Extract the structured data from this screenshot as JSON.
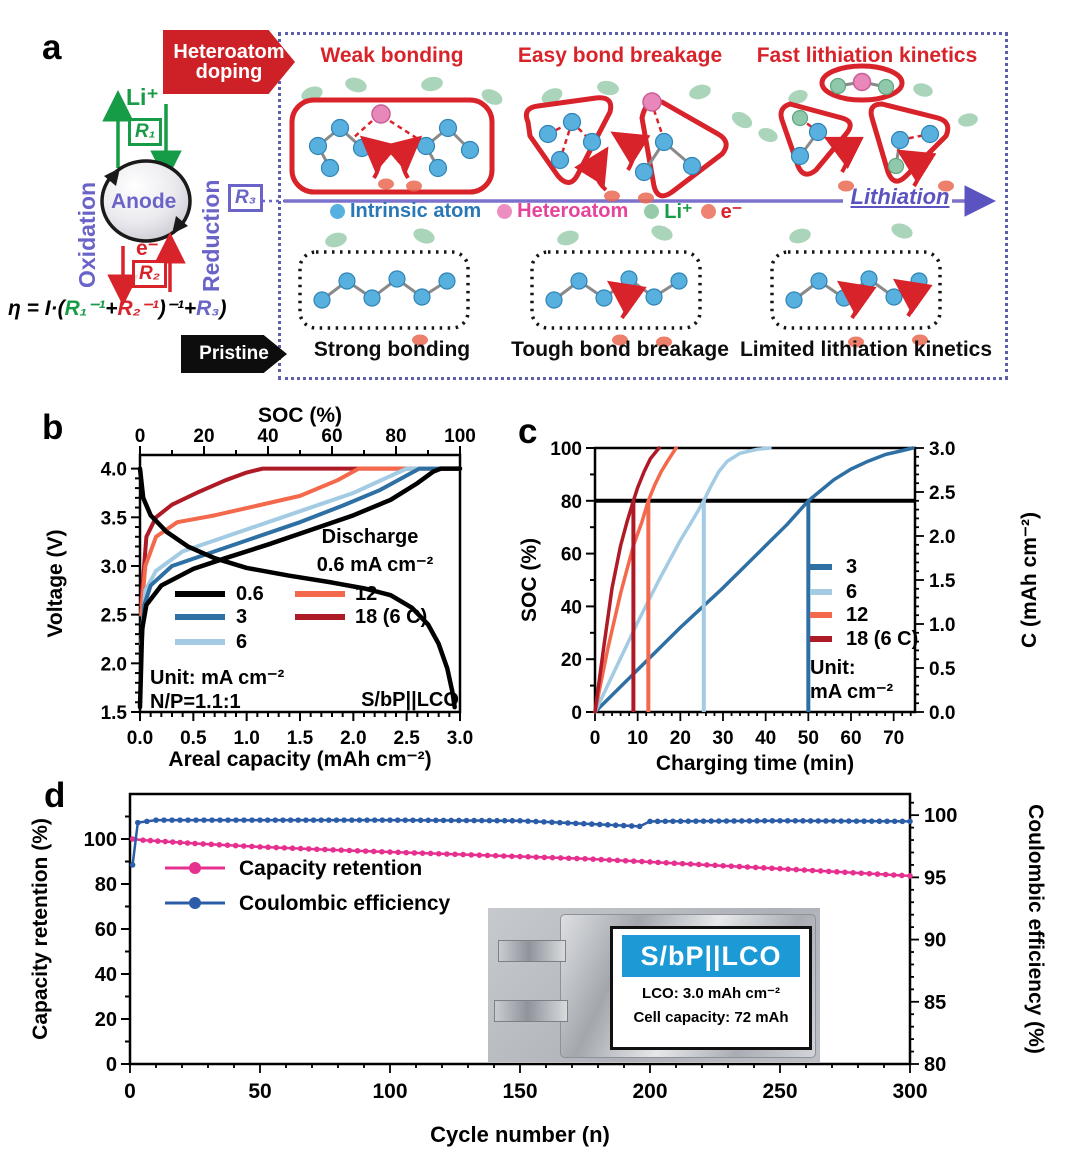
{
  "colors": {
    "accent_red": "#d8232a",
    "purple": "#6b64c8",
    "green": "#169c46",
    "atom_blue": "#58b0df",
    "heteroatom_pink": "#e887b9",
    "li_green": "#96cbaa",
    "electron_red": "#e96a50",
    "inset_banner_blue": "#1c9ad6",
    "retention_pink": "#e6308f",
    "ce_blue": "#2b5ca8"
  },
  "icons": {
    "heteroatom-doping-banner": "right-arrow ribbon",
    "pristine-banner": "right-arrow ribbon",
    "anode-cycle-icon": "circular arrow ring",
    "lithiation-arrow-icon": "rightwards arrow",
    "molecule-cluster-icon": "atoms and bonds"
  },
  "panel_a": {
    "label": "a",
    "banner_doped": {
      "line1": "Heteroatom",
      "line2": "doping"
    },
    "banner_pristine": "Pristine",
    "top_labels": [
      "Weak bonding",
      "Easy bond breakage",
      "Fast lithiation kinetics"
    ],
    "bottom_labels": [
      "Strong bonding",
      "Tough bond breakage",
      "Limited lithiation kinetics"
    ],
    "legend": [
      {
        "label": "Intrinsic atom",
        "color": "#2878b8",
        "dot": "#57b0e0"
      },
      {
        "label": "Heteroatom",
        "color": "#e8439a",
        "dot": "#ec8fc0"
      },
      {
        "label": "Li⁺",
        "color": "#169c46",
        "dot": "#96cbaa"
      },
      {
        "label": "e⁻",
        "color": "#d8232a",
        "dot": "#ef8372"
      }
    ],
    "lithiation": "Lithiation",
    "cycle": {
      "li": "Li⁺",
      "r1": "R₁",
      "oxidation": "Oxidation",
      "anode": "Anode",
      "reduction": "Reduction",
      "e": "e⁻",
      "r2": "R₂",
      "r3": "R₃"
    },
    "equation": {
      "p1": "η = I·(",
      "p2": "R₁⁻¹",
      "p3": "+",
      "p4": "R₂⁻¹",
      "p5": ")⁻¹+",
      "p6": "R₃",
      "p7": ")"
    }
  },
  "panel_labels": {
    "b": "b",
    "c": "c",
    "d": "d"
  },
  "chart_data": [
    {
      "id": "b",
      "type": "line",
      "xlabel": "Areal capacity (mAh cm⁻²)",
      "ylabel": "Voltage (V)",
      "x2label": "SOC (%)",
      "xlim": [
        0,
        3.0
      ],
      "ylim": [
        1.5,
        4.0
      ],
      "x2lim": [
        0,
        100
      ],
      "xticks": [
        "0.0",
        "0.5",
        "1.0",
        "1.5",
        "2.0",
        "2.5",
        "3.0"
      ],
      "yticks": [
        "1.5",
        "2.0",
        "2.5",
        "3.0",
        "3.5",
        "4.0"
      ],
      "x2ticks": [
        "0",
        "20",
        "40",
        "60",
        "80",
        "100"
      ],
      "grid": false,
      "annotations": [
        "Discharge",
        "0.6 mA cm⁻²",
        "Unit: mA cm⁻²",
        "N/P=1.1:1",
        "S/bP||LCO"
      ],
      "legend": [
        {
          "label": "0.6",
          "color": "#000000"
        },
        {
          "label": "3",
          "color": "#2e6fa4"
        },
        {
          "label": "6",
          "color": "#a3cbe4"
        },
        {
          "label": "12",
          "color": "#f4684b"
        },
        {
          "label": "18 (6 C)",
          "color": "#ae1b26"
        }
      ],
      "series": [
        {
          "name": "18 (6 C) charge",
          "color": "#ae1b26",
          "width": 4,
          "points": [
            [
              0.01,
              2.6
            ],
            [
              0.06,
              3.3
            ],
            [
              0.15,
              3.5
            ],
            [
              0.3,
              3.63
            ],
            [
              0.55,
              3.76
            ],
            [
              0.8,
              3.88
            ],
            [
              1.0,
              3.96
            ],
            [
              1.15,
              4.0
            ],
            [
              3.0,
              4.0
            ]
          ]
        },
        {
          "name": "12 charge",
          "color": "#f4684b",
          "width": 4,
          "points": [
            [
              0.01,
              2.5
            ],
            [
              0.05,
              3.0
            ],
            [
              0.15,
              3.3
            ],
            [
              0.35,
              3.45
            ],
            [
              0.7,
              3.52
            ],
            [
              1.1,
              3.62
            ],
            [
              1.5,
              3.72
            ],
            [
              1.85,
              3.88
            ],
            [
              2.05,
              4.0
            ],
            [
              3.0,
              4.0
            ]
          ]
        },
        {
          "name": "6 charge",
          "color": "#a3cbe4",
          "width": 4,
          "points": [
            [
              0.01,
              2.2
            ],
            [
              0.05,
              2.75
            ],
            [
              0.15,
              2.95
            ],
            [
              0.4,
              3.15
            ],
            [
              0.8,
              3.3
            ],
            [
              1.2,
              3.45
            ],
            [
              1.6,
              3.6
            ],
            [
              2.0,
              3.75
            ],
            [
              2.3,
              3.9
            ],
            [
              2.5,
              4.0
            ],
            [
              3.0,
              4.0
            ]
          ]
        },
        {
          "name": "3 charge",
          "color": "#2e6fa4",
          "width": 4,
          "points": [
            [
              0.01,
              2.1
            ],
            [
              0.04,
              2.6
            ],
            [
              0.1,
              2.8
            ],
            [
              0.3,
              3.0
            ],
            [
              0.7,
              3.15
            ],
            [
              1.1,
              3.3
            ],
            [
              1.5,
              3.45
            ],
            [
              1.9,
              3.62
            ],
            [
              2.25,
              3.78
            ],
            [
              2.5,
              3.93
            ],
            [
              2.62,
              4.0
            ],
            [
              3.0,
              4.0
            ]
          ]
        },
        {
          "name": "0.6 charge",
          "color": "#000000",
          "width": 4.5,
          "points": [
            [
              0.0,
              1.55
            ],
            [
              0.02,
              2.35
            ],
            [
              0.06,
              2.6
            ],
            [
              0.2,
              2.8
            ],
            [
              0.5,
              2.97
            ],
            [
              0.8,
              3.08
            ],
            [
              1.2,
              3.22
            ],
            [
              1.6,
              3.37
            ],
            [
              2.0,
              3.52
            ],
            [
              2.35,
              3.68
            ],
            [
              2.6,
              3.85
            ],
            [
              2.75,
              3.97
            ],
            [
              2.82,
              4.0
            ],
            [
              3.0,
              4.0
            ]
          ]
        },
        {
          "name": "0.6 discharge",
          "color": "#000000",
          "width": 4.5,
          "points": [
            [
              0.0,
              4.0
            ],
            [
              0.03,
              3.7
            ],
            [
              0.1,
              3.52
            ],
            [
              0.25,
              3.35
            ],
            [
              0.45,
              3.2
            ],
            [
              0.7,
              3.08
            ],
            [
              1.0,
              2.98
            ],
            [
              1.4,
              2.9
            ],
            [
              1.8,
              2.83
            ],
            [
              2.1,
              2.77
            ],
            [
              2.35,
              2.7
            ],
            [
              2.55,
              2.57
            ],
            [
              2.7,
              2.4
            ],
            [
              2.8,
              2.2
            ],
            [
              2.88,
              1.95
            ],
            [
              2.93,
              1.7
            ],
            [
              2.95,
              1.55
            ]
          ]
        }
      ]
    },
    {
      "id": "c",
      "type": "line",
      "xlabel": "Charging time (min)",
      "ylabel": "SOC (%)",
      "y2label": "C (mAh cm⁻²)",
      "xlim": [
        0,
        75
      ],
      "ylim": [
        0,
        100
      ],
      "y2lim": [
        0,
        3.0
      ],
      "xticks": [
        "0",
        "10",
        "20",
        "30",
        "40",
        "50",
        "60",
        "70"
      ],
      "yticks": [
        "0",
        "20",
        "40",
        "60",
        "80",
        "100"
      ],
      "y2ticks": [
        "0.0",
        "0.5",
        "1.0",
        "1.5",
        "2.0",
        "2.5",
        "3.0"
      ],
      "grid": false,
      "hline": 80,
      "legend": [
        {
          "label": "3",
          "color": "#2e6fa4"
        },
        {
          "label": "6",
          "color": "#a3cbe4"
        },
        {
          "label": "12",
          "color": "#f4684b"
        },
        {
          "label": "18 (6 C)",
          "color": "#ae1b26"
        }
      ],
      "legend_note": [
        "Unit:",
        "mA cm⁻²"
      ],
      "series": [
        {
          "name": "3",
          "color": "#2e6fa4",
          "t80": 50,
          "points": [
            [
              0,
              0
            ],
            [
              10,
              16
            ],
            [
              20,
              32
            ],
            [
              30,
              47
            ],
            [
              40,
              63
            ],
            [
              45,
              71
            ],
            [
              50,
              80
            ],
            [
              53,
              84
            ],
            [
              56,
              88
            ],
            [
              60,
              92
            ],
            [
              64,
              95
            ],
            [
              68,
              97.5
            ],
            [
              72,
              99
            ],
            [
              74.5,
              100
            ]
          ]
        },
        {
          "name": "6",
          "color": "#a3cbe4",
          "t80": 25.5,
          "points": [
            [
              0,
              0
            ],
            [
              5,
              17
            ],
            [
              10,
              34
            ],
            [
              15,
              50
            ],
            [
              20,
              65
            ],
            [
              23,
              73
            ],
            [
              25.5,
              80
            ],
            [
              27,
              85
            ],
            [
              29,
              91
            ],
            [
              31,
              95
            ],
            [
              34,
              98
            ],
            [
              38,
              99.5
            ],
            [
              41,
              100
            ]
          ]
        },
        {
          "name": "12",
          "color": "#f4684b",
          "t80": 12.5,
          "points": [
            [
              0,
              0
            ],
            [
              3,
              24
            ],
            [
              6,
              45
            ],
            [
              9,
              63
            ],
            [
              11,
              72
            ],
            [
              12.5,
              80
            ],
            [
              14,
              86
            ],
            [
              15.5,
              91
            ],
            [
              17,
              95
            ],
            [
              19,
              100
            ]
          ]
        },
        {
          "name": "18 (6 C)",
          "color": "#ae1b26",
          "t80": 9,
          "points": [
            [
              0,
              0
            ],
            [
              2,
              24
            ],
            [
              4,
              47
            ],
            [
              6,
              63
            ],
            [
              7.5,
              72
            ],
            [
              9,
              80
            ],
            [
              10,
              85
            ],
            [
              11.5,
              91
            ],
            [
              13,
              96
            ],
            [
              15,
              100
            ]
          ]
        }
      ]
    },
    {
      "id": "d",
      "type": "line",
      "xlabel": "Cycle number (n)",
      "ylabel": "Capacity retention (%)",
      "y2label": "Coulombic efficiency (%)",
      "xlim": [
        0,
        300
      ],
      "ylim": [
        0,
        120
      ],
      "y2lim": [
        80,
        100
      ],
      "xticks": [
        "0",
        "50",
        "100",
        "150",
        "200",
        "250",
        "300"
      ],
      "yticks": [
        "0",
        "20",
        "40",
        "60",
        "80",
        "100"
      ],
      "y2ticks": [
        "80",
        "85",
        "90",
        "95",
        "100"
      ],
      "grid": false,
      "legend": [
        {
          "label": "Capacity retention",
          "color": "#e6308f"
        },
        {
          "label": "Coulombic efficiency",
          "color": "#2b5ca8"
        }
      ],
      "series": [
        {
          "name": "Capacity retention",
          "axis": "left",
          "color": "#e6308f",
          "points": [
            [
              1,
              100
            ],
            [
              5,
              99.5
            ],
            [
              25,
              98
            ],
            [
              50,
              96.5
            ],
            [
              75,
              95.3
            ],
            [
              100,
              94.2
            ],
            [
              125,
              93.2
            ],
            [
              150,
              92.2
            ],
            [
              175,
              91.2
            ],
            [
              200,
              89.8
            ],
            [
              225,
              88.3
            ],
            [
              250,
              86.8
            ],
            [
              275,
              85.2
            ],
            [
              300,
              83.6
            ]
          ]
        },
        {
          "name": "Coulombic efficiency",
          "axis": "right",
          "color": "#2b5ca8",
          "points": [
            [
              1,
              96
            ],
            [
              3,
              99.4
            ],
            [
              10,
              99.6
            ],
            [
              50,
              99.6
            ],
            [
              100,
              99.6
            ],
            [
              150,
              99.55
            ],
            [
              196,
              99.1
            ],
            [
              200,
              99.5
            ],
            [
              250,
              99.55
            ],
            [
              300,
              99.5
            ]
          ]
        }
      ],
      "inset": {
        "banner": "S/bP||LCO",
        "line1": "LCO: 3.0 mAh cm⁻²",
        "line2": "Cell capacity: 72 mAh"
      }
    }
  ]
}
